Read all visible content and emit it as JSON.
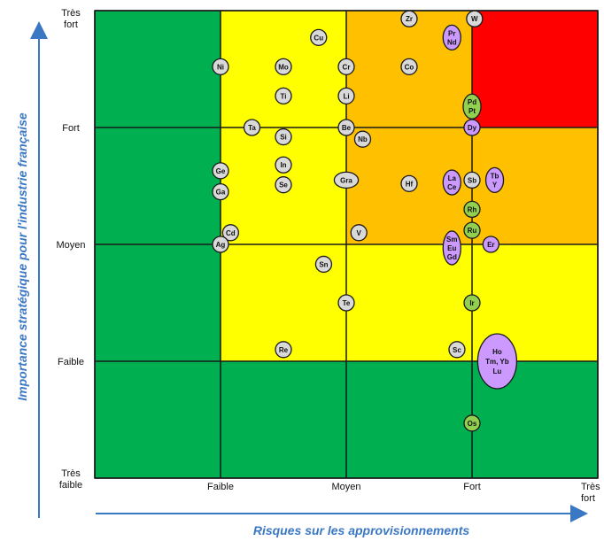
{
  "chart_data": {
    "type": "scatter",
    "title": "",
    "xlabel": "Risques sur les approvisionnements",
    "ylabel": "Importance stratégique pour l'industrie française",
    "xlim": [
      -1,
      3
    ],
    "ylim": [
      -1,
      3
    ],
    "x_ticks": [
      {
        "v": 0,
        "lines": [
          "Faible"
        ]
      },
      {
        "v": 1,
        "lines": [
          "Moyen"
        ]
      },
      {
        "v": 2,
        "lines": [
          "Fort"
        ]
      },
      {
        "v": 3,
        "lines": [
          "Très",
          "fort"
        ]
      }
    ],
    "y_ticks": [
      {
        "v": -1,
        "lines": [
          "Très",
          "faible"
        ]
      },
      {
        "v": 0,
        "lines": [
          "Faible"
        ]
      },
      {
        "v": 1,
        "lines": [
          "Moyen"
        ]
      },
      {
        "v": 2,
        "lines": [
          "Fort"
        ]
      },
      {
        "v": 3,
        "lines": [
          "Très",
          "fort"
        ]
      }
    ],
    "zones": [
      {
        "x": [
          -1,
          3
        ],
        "y": [
          -1,
          3
        ],
        "color": "#00b050"
      },
      {
        "x": [
          0,
          3
        ],
        "y": [
          0,
          3
        ],
        "color": "#ffff00"
      },
      {
        "x": [
          1,
          3
        ],
        "y": [
          1,
          3
        ],
        "color": "#ffc000"
      },
      {
        "x": [
          2,
          3
        ],
        "y": [
          2,
          3
        ],
        "color": "#ff0000"
      }
    ],
    "grid": true,
    "colors": {
      "gray": "#d9d9d9",
      "purple": "#cc99ff",
      "green": "#92d050",
      "axis_arrow": "#3b78c4"
    },
    "points": [
      {
        "label": "Zr",
        "x": 1.5,
        "y": 2.93,
        "color": "gray"
      },
      {
        "label": "W",
        "x": 2.02,
        "y": 2.93,
        "color": "gray"
      },
      {
        "label": "Pr Nd",
        "x": 1.84,
        "y": 2.77,
        "color": "purple"
      },
      {
        "label": "Cu",
        "x": 0.78,
        "y": 2.77,
        "color": "gray"
      },
      {
        "label": "Ni",
        "x": 0.0,
        "y": 2.52,
        "color": "gray"
      },
      {
        "label": "Mo",
        "x": 0.5,
        "y": 2.52,
        "color": "gray"
      },
      {
        "label": "Cr",
        "x": 1.0,
        "y": 2.52,
        "color": "gray"
      },
      {
        "label": "Co",
        "x": 1.5,
        "y": 2.52,
        "color": "gray"
      },
      {
        "label": "Ti",
        "x": 0.5,
        "y": 2.27,
        "color": "gray"
      },
      {
        "label": "Li",
        "x": 1.0,
        "y": 2.27,
        "color": "gray"
      },
      {
        "label": "Pd Pt",
        "x": 2.0,
        "y": 2.18,
        "color": "green"
      },
      {
        "label": "Ta",
        "x": 0.25,
        "y": 2.0,
        "color": "gray"
      },
      {
        "label": "Be",
        "x": 1.0,
        "y": 2.0,
        "color": "gray"
      },
      {
        "label": "Dy",
        "x": 2.0,
        "y": 2.0,
        "color": "purple"
      },
      {
        "label": "Si",
        "x": 0.5,
        "y": 1.92,
        "color": "gray"
      },
      {
        "label": "Nb",
        "x": 1.13,
        "y": 1.9,
        "color": "gray"
      },
      {
        "label": "In",
        "x": 0.5,
        "y": 1.68,
        "color": "gray"
      },
      {
        "label": "Ge",
        "x": 0.0,
        "y": 1.63,
        "color": "gray"
      },
      {
        "label": "Gra",
        "x": 1.0,
        "y": 1.55,
        "color": "gray"
      },
      {
        "label": "Hf",
        "x": 1.5,
        "y": 1.52,
        "color": "gray"
      },
      {
        "label": "La Ce",
        "x": 1.84,
        "y": 1.53,
        "color": "purple"
      },
      {
        "label": "Sb",
        "x": 2.0,
        "y": 1.55,
        "color": "gray"
      },
      {
        "label": "Tb Y",
        "x": 2.18,
        "y": 1.55,
        "color": "purple"
      },
      {
        "label": "Se",
        "x": 0.5,
        "y": 1.51,
        "color": "gray"
      },
      {
        "label": "Ga",
        "x": 0.0,
        "y": 1.45,
        "color": "gray"
      },
      {
        "label": "Rh",
        "x": 2.0,
        "y": 1.3,
        "color": "green"
      },
      {
        "label": "Ru",
        "x": 2.0,
        "y": 1.12,
        "color": "green"
      },
      {
        "label": "Cd",
        "x": 0.08,
        "y": 1.1,
        "color": "gray"
      },
      {
        "label": "V",
        "x": 1.1,
        "y": 1.1,
        "color": "gray"
      },
      {
        "label": "Ag",
        "x": 0.0,
        "y": 1.0,
        "color": "gray"
      },
      {
        "label": "Sm Eu Gd",
        "x": 1.84,
        "y": 0.97,
        "color": "purple"
      },
      {
        "label": "Er",
        "x": 2.15,
        "y": 1.0,
        "color": "purple"
      },
      {
        "label": "Sn",
        "x": 0.82,
        "y": 0.83,
        "color": "gray"
      },
      {
        "label": "Te",
        "x": 1.0,
        "y": 0.5,
        "color": "gray"
      },
      {
        "label": "Ir",
        "x": 2.0,
        "y": 0.5,
        "color": "green"
      },
      {
        "label": "Re",
        "x": 0.5,
        "y": 0.1,
        "color": "gray"
      },
      {
        "label": "Sc",
        "x": 1.88,
        "y": 0.1,
        "color": "gray"
      },
      {
        "label": "Ho Tm, Yb Lu",
        "x": 2.2,
        "y": 0.0,
        "color": "purple"
      },
      {
        "label": "Os",
        "x": 2.0,
        "y": -0.53,
        "color": "green"
      }
    ]
  }
}
